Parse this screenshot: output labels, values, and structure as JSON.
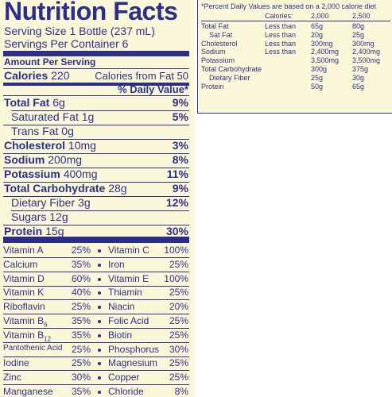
{
  "label": {
    "title": "Nutrition Facts",
    "serving_size": "Serving Size 1 Bottle (237 mL)",
    "servings": "Servings Per Container 6",
    "amount_per_serving": "Amount Per Serving",
    "calories_label": "Calories",
    "calories_value": "220",
    "calories_fat": "Calories from Fat 50",
    "daily_value_header": "% Daily Value*",
    "nutrients": [
      {
        "name": "Total Fat",
        "amount": "6g",
        "dv": "9%"
      },
      {
        "name": "Saturated Fat",
        "amount": "1g",
        "dv": "5%"
      },
      {
        "name": "Trans Fat",
        "amount": "0g",
        "dv": ""
      },
      {
        "name": "Cholesterol",
        "amount": "10mg",
        "dv": "3%"
      },
      {
        "name": "Sodium",
        "amount": "200mg",
        "dv": "8%"
      },
      {
        "name": "Potassium",
        "amount": "400mg",
        "dv": "11%"
      },
      {
        "name": "Total Carbohydrate",
        "amount": "28g",
        "dv": "9%"
      },
      {
        "name": "Dietary Fiber",
        "amount": "3g",
        "dv": "12%"
      },
      {
        "name": "Sugars",
        "amount": "12g",
        "dv": ""
      },
      {
        "name": "Protein",
        "amount": "15g",
        "dv": "30%"
      }
    ],
    "vitamins": [
      {
        "l_name": "Vitamin A",
        "l_val": "25%",
        "r_name": "Vitamin C",
        "r_val": "100%"
      },
      {
        "l_name": "Calcium",
        "l_val": "35%",
        "r_name": "Iron",
        "r_val": "25%"
      },
      {
        "l_name": "Vitamin D",
        "l_val": "60%",
        "r_name": "Vitamin E",
        "r_val": "100%"
      },
      {
        "l_name": "Vitamin K",
        "l_val": "40%",
        "r_name": "Thiamin",
        "r_val": "25%"
      },
      {
        "l_name": "Riboflavin",
        "l_val": "25%",
        "r_name": "Niacin",
        "r_val": "20%"
      },
      {
        "l_name": "Vitamin B",
        "l_sub": "6",
        "l_val": "35%",
        "r_name": "Folic Acid",
        "r_val": "25%"
      },
      {
        "l_name": "Vitamin B",
        "l_sub": "12",
        "l_val": "35%",
        "r_name": "Biotin",
        "r_val": "25%"
      },
      {
        "l_name": "Pantothenic Acid",
        "l_val": "25%",
        "r_name": "Phosphorus",
        "r_val": "30%"
      },
      {
        "l_name": "Iodine",
        "l_val": "25%",
        "r_name": "Magnesium",
        "r_val": "25%"
      },
      {
        "l_name": "Zinc",
        "l_val": "30%",
        "r_name": "Copper",
        "r_val": "25%"
      },
      {
        "l_name": "Manganese",
        "l_val": "35%",
        "r_name": "Chloride",
        "r_val": "8%"
      }
    ]
  },
  "daily_values": {
    "footnote": "*Percent Daily Values are based on a 2,000 calorie diet",
    "header": {
      "label": "Calories:",
      "c1": "2,000",
      "c2": "2,500"
    },
    "rows": [
      {
        "name": "Total Fat",
        "qual": "Less than",
        "v1": "65g",
        "v2": "80g"
      },
      {
        "name": "Sat Fat",
        "qual": "Less than",
        "v1": "20g",
        "v2": "25g"
      },
      {
        "name": "Cholesterol",
        "qual": "Less than",
        "v1": "300mg",
        "v2": "300mg"
      },
      {
        "name": "Sodium",
        "qual": "Less than",
        "v1": "2,400mg",
        "v2": "2,400mg"
      },
      {
        "name": "Potassium",
        "qual": "",
        "v1": "3,500mg",
        "v2": "3,500mg"
      },
      {
        "name": "Total Carbohydrate",
        "qual": "",
        "v1": "300g",
        "v2": "375g"
      },
      {
        "name": "Dietary Fiber",
        "qual": "",
        "v1": "25g",
        "v2": "30g"
      },
      {
        "name": "Protein",
        "qual": "",
        "v1": "50g",
        "v2": "65g"
      }
    ]
  }
}
